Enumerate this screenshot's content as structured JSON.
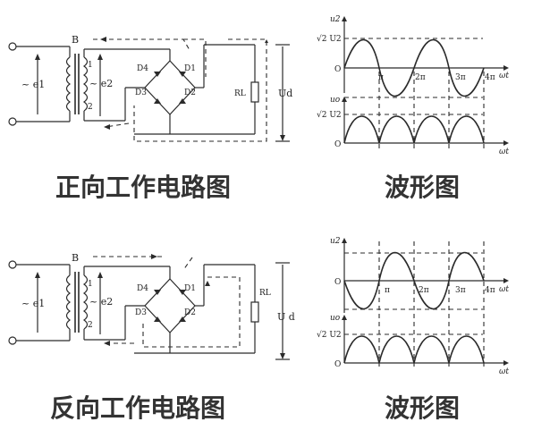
{
  "top": {
    "circuit": {
      "source_label": "~ e1",
      "secondary_label": "~ e2",
      "transformer_label": "B",
      "terminal_top": "1",
      "terminal_bottom": "2",
      "diode_d4": "D4",
      "diode_d1": "D1",
      "diode_d3": "D3",
      "diode_d2": "D2",
      "load_label": "RL",
      "output_label": "Ud"
    },
    "caption": "正向工作电路图",
    "waveform_caption": "波形图",
    "waveform": {
      "input_axis_label": "u2",
      "input_amplitude_label": "√2 U2",
      "output_axis_label": "uo",
      "output_amplitude_label": "√2 U2",
      "origin_label": "O",
      "time_axis_label": "ωt",
      "ticks": [
        "π",
        "2π",
        "3π",
        "4π"
      ]
    }
  },
  "bottom": {
    "circuit": {
      "source_label": "~ e1",
      "secondary_label": "~ e2",
      "transformer_label": "B",
      "terminal_top": "1",
      "terminal_bottom": "2",
      "diode_d4": "D4",
      "diode_d1": "D1",
      "diode_d3": "D3",
      "diode_d2": "D2",
      "load_label": "RL",
      "output_label": "U d"
    },
    "caption": "反向工作电路图",
    "waveform_caption": "波形图",
    "waveform": {
      "input_axis_label": "u2",
      "output_axis_label": "uo",
      "output_amplitude_label": "√2 U2",
      "origin_label": "O",
      "time_axis_label": "ωt",
      "ticks": [
        "π",
        "2π",
        "3π",
        "4π"
      ]
    }
  }
}
